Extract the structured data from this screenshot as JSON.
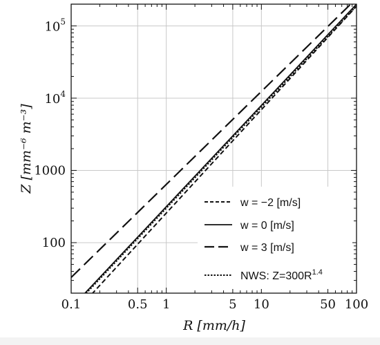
{
  "chart_data": {
    "type": "line",
    "title": "",
    "xlabel": {
      "main": "R",
      "unit": "[mm/h]"
    },
    "ylabel": {
      "main": "Z",
      "unit": "[mm⁻⁶ m⁻³]"
    },
    "x_scale": "log",
    "y_scale": "log",
    "xlim": [
      0.1,
      100
    ],
    "ylim": [
      20,
      200000
    ],
    "grid": true,
    "legend_position": "bottom-right",
    "x_ticks": [
      {
        "value": 0.1,
        "label": "0.1"
      },
      {
        "value": 0.5,
        "label": "0.5"
      },
      {
        "value": 1,
        "label": "1"
      },
      {
        "value": 5,
        "label": "5"
      },
      {
        "value": 10,
        "label": "10"
      },
      {
        "value": 50,
        "label": "50"
      },
      {
        "value": 100,
        "label": "100"
      }
    ],
    "y_ticks": [
      {
        "value": 100,
        "label": "100",
        "exp": ""
      },
      {
        "value": 1000,
        "label": "1000",
        "exp": ""
      },
      {
        "value": 10000,
        "label": "10",
        "exp": "4"
      },
      {
        "value": 100000,
        "label": "10",
        "exp": "5"
      }
    ],
    "series": [
      {
        "name": "w = −2 [m/s]",
        "dash": "short",
        "x": [
          0.1,
          100
        ],
        "y": [
          9.5,
          187000
        ]
      },
      {
        "name": "w = 0 [m/s]",
        "dash": "solid",
        "x": [
          0.1,
          100
        ],
        "y": [
          12.5,
          200000
        ]
      },
      {
        "name": "w = 3 [m/s]",
        "dash": "long",
        "x": [
          0.1,
          100
        ],
        "y": [
          33,
          240000
        ]
      },
      {
        "name": "NWS: Z=300R",
        "name_sup": "1.4",
        "dash": "dotted",
        "x": [
          0.1,
          100
        ],
        "y": [
          11.94,
          189000
        ]
      }
    ]
  }
}
